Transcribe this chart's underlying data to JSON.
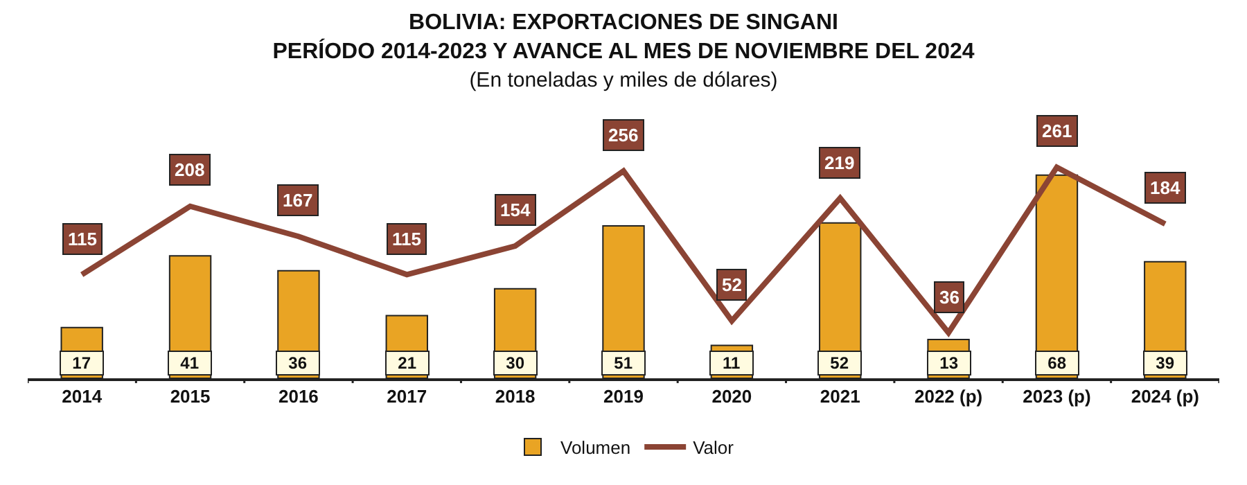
{
  "chart_data": {
    "type": "bar",
    "title": "BOLIVIA: EXPORTACIONES DE SINGANI\nPERÍODO 2014-2023 Y AVANCE AL MES DE NOVIEMBRE DEL 2024",
    "subtitle": "(En toneladas y miles de dólares)",
    "categories": [
      "2014",
      "2015",
      "2016",
      "2017",
      "2018",
      "2019",
      "2020",
      "2021",
      "2022 (p)",
      "2023 (p)",
      "2024 (p)"
    ],
    "series": [
      {
        "name": "Volumen",
        "color": "#e9a424",
        "values": [
          17,
          41,
          36,
          21,
          30,
          51,
          11,
          52,
          13,
          68,
          39
        ]
      },
      {
        "name": "Valor",
        "type": "line",
        "axis": "y2",
        "color": "#8b4434",
        "values": [
          115,
          208,
          167,
          115,
          154,
          256,
          52,
          219,
          36,
          261,
          184
        ]
      }
    ],
    "tick_labels": "x",
    "legend": "bottom",
    "data_labels": true,
    "marker": "none",
    "line_style": "solid"
  }
}
